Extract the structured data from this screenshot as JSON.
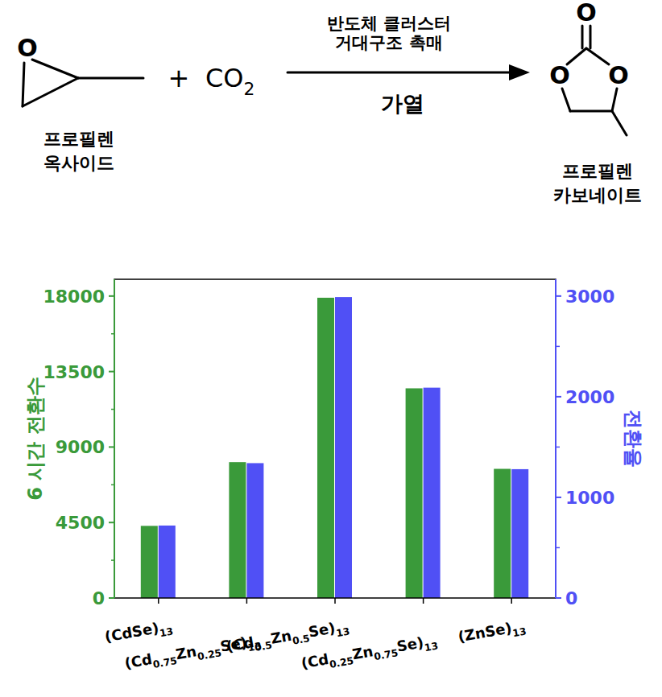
{
  "scheme": {
    "reactant_name": [
      "프로필렌",
      "옥사이드"
    ],
    "plus": "+",
    "co2": "CO2",
    "catalyst": [
      "반도체 클러스터",
      "거대구조 촉매"
    ],
    "condition": "가열",
    "product_name": [
      "프로필렌",
      "카보네이트"
    ],
    "atom": "O"
  },
  "chart_data": {
    "type": "bar",
    "categories": [
      "(CdSe)13",
      "(Cd0.75Zn0.25Se)13",
      "(Cd0.5Zn0.5Se)13",
      "(Cd0.25Zn0.75Se)13",
      "(ZnSe)13"
    ],
    "y_label": "6 시간 전환수",
    "y2_label": "전환율",
    "series": [
      {
        "color": "#3a9a3a",
        "values": [
          4300,
          8100,
          17900,
          12500,
          7700
        ]
      },
      {
        "color": "#5050f5",
        "axis": "y2",
        "values": [
          720,
          1340,
          2990,
          2090,
          1280
        ]
      }
    ],
    "ylim": [
      0,
      19000
    ],
    "yticks": [
      0,
      4500,
      9000,
      13500,
      18000
    ],
    "y2lim": [
      0,
      3166.7
    ],
    "y2ticks": [
      0,
      1000,
      2000,
      3000
    ],
    "grid": false
  }
}
